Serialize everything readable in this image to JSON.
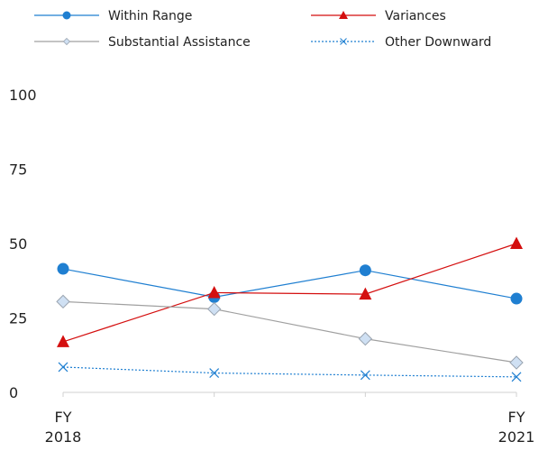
{
  "chart_data": {
    "type": "line",
    "x_tick_labels": [
      [
        "FY",
        "2018"
      ],
      [],
      [],
      [
        "FY",
        "2021"
      ]
    ],
    "ylim": [
      0,
      100
    ],
    "yticks": [
      0,
      25,
      50,
      75,
      100
    ],
    "grid": false,
    "legend_position": "top",
    "series": [
      {
        "name": "Within Range",
        "color": "#1f7fd1",
        "marker": "circle",
        "line": "solid",
        "values": [
          41.5,
          32.0,
          41.0,
          31.5
        ]
      },
      {
        "name": "Variances",
        "color": "#d40f0f",
        "marker": "triangle",
        "line": "solid",
        "values": [
          17.0,
          33.5,
          33.0,
          50.0
        ]
      },
      {
        "name": "Substantial Assistance",
        "color": "#a0a0a0",
        "marker": "diamond",
        "line": "solid",
        "values": [
          30.5,
          28.0,
          18.0,
          10.0
        ]
      },
      {
        "name": "Other Downward",
        "color": "#1f7fd1",
        "marker": "x",
        "line": "dotted",
        "values": [
          8.5,
          6.5,
          5.8,
          5.2
        ]
      }
    ]
  }
}
